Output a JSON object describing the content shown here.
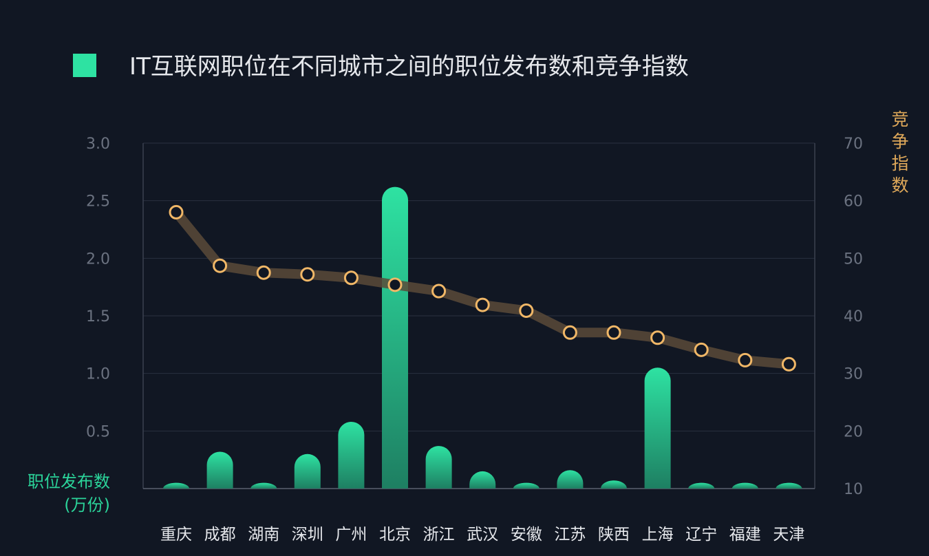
{
  "colors": {
    "background": "#111723",
    "bar": "#2bd49a",
    "line": "#5a4a38",
    "marker": "#f0b767",
    "legend_square": "#2ee2a2",
    "grid": "#2a3140"
  },
  "chart_data": {
    "type": "bar",
    "title": "IT互联网职位在不同城市之间的职位发布数和竞争指数",
    "legend": {
      "position": "top-left",
      "marker": "square"
    },
    "categories": [
      "重庆",
      "成都",
      "湖南",
      "深圳",
      "广州",
      "北京",
      "浙江",
      "武汉",
      "安徽",
      "江苏",
      "陕西",
      "上海",
      "辽宁",
      "福建",
      "天津"
    ],
    "y_axis": {
      "label_line1": "职位发布数",
      "label_line2": "(万份)",
      "range": [
        0,
        3.0
      ],
      "ticks": [
        "0.5",
        "1.0",
        "1.5",
        "2.0",
        "2.5",
        "3.0"
      ]
    },
    "y2_axis": {
      "label": [
        "竞",
        "争",
        "指",
        "数"
      ],
      "range": [
        10,
        70
      ],
      "ticks": [
        "10",
        "20",
        "30",
        "40",
        "50",
        "60",
        "70"
      ]
    },
    "grid": true,
    "series": [
      {
        "type": "bar",
        "axis": "left",
        "values": [
          0.05,
          0.32,
          0.05,
          0.3,
          0.58,
          2.62,
          0.37,
          0.15,
          0.05,
          0.16,
          0.07,
          1.05,
          0.05,
          0.05,
          0.05
        ]
      },
      {
        "type": "line",
        "axis": "right",
        "values": [
          58.0,
          48.7,
          47.5,
          47.2,
          46.6,
          45.4,
          44.3,
          41.9,
          40.9,
          37.1,
          37.1,
          36.2,
          34.1,
          32.3,
          31.6
        ]
      }
    ]
  }
}
